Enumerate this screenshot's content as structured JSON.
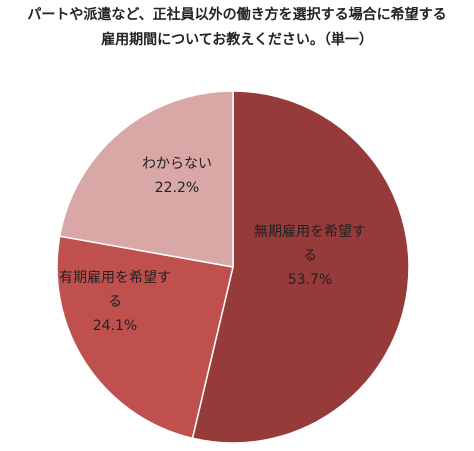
{
  "title": {
    "line1": "パートや派遣など、正社員以外の働き方を選択する場合に希望する",
    "line2": "雇用期間についてお教えください。（単一）"
  },
  "chart_data": {
    "type": "pie",
    "slices": [
      {
        "label_lines": [
          "無期雇用を希望す",
          "る"
        ],
        "value": 53.7,
        "value_label": "53.7%",
        "color": "#963a3a"
      },
      {
        "label_lines": [
          "有期雇用を希望す",
          "る"
        ],
        "value": 24.1,
        "value_label": "24.1%",
        "color": "#c0504d"
      },
      {
        "label_lines": [
          "わからない"
        ],
        "value": 22.2,
        "value_label": "22.2%",
        "color": "#d9a7a6"
      }
    ],
    "start": "12 o'clock",
    "direction": "clockwise",
    "border_color": "#ffffff"
  }
}
